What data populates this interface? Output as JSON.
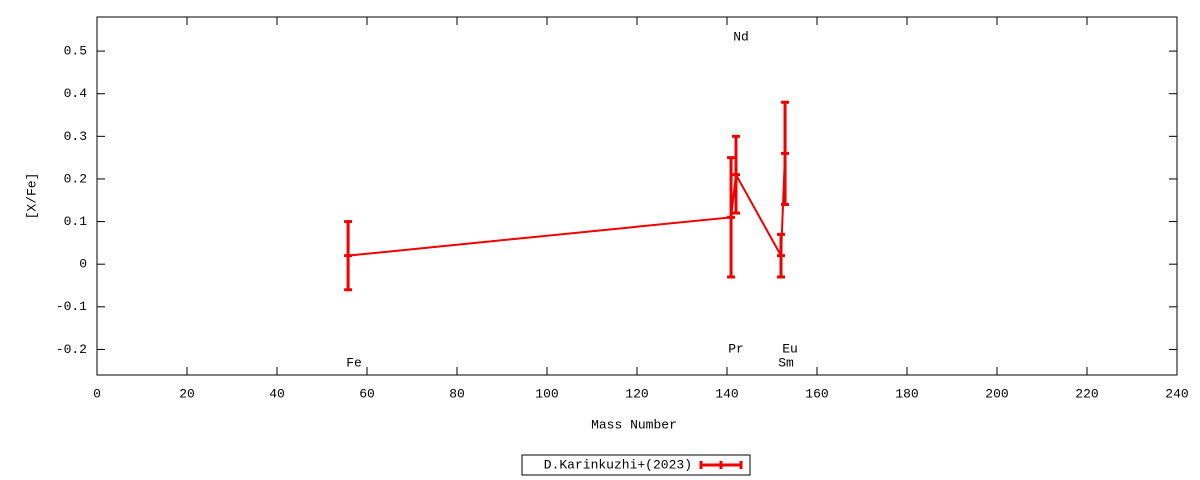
{
  "chart_data": {
    "type": "errorbar",
    "xlabel": "Mass Number",
    "ylabel": "[X/Fe]",
    "xlim": [
      0,
      240
    ],
    "ylim": [
      -0.26,
      0.58
    ],
    "xticks": [
      0,
      20,
      40,
      60,
      80,
      100,
      120,
      140,
      160,
      180,
      200,
      220,
      240
    ],
    "yticks": [
      -0.2,
      -0.1,
      0,
      0.1,
      0.2,
      0.3,
      0.4,
      0.5
    ],
    "annotations": [
      "Fe",
      "Nd",
      "Pr",
      "Eu",
      "Sm"
    ],
    "legend": "bottom",
    "series": [
      {
        "name": "D.Karinkuzhi+(2023)",
        "color": "#f00000",
        "x": [
          55.8,
          140.9,
          142.0,
          152.0,
          152.9
        ],
        "values": [
          0.02,
          0.11,
          0.21,
          0.02,
          0.26
        ],
        "errors": [
          0.08,
          0.14,
          0.09,
          0.05,
          0.12
        ]
      }
    ]
  }
}
